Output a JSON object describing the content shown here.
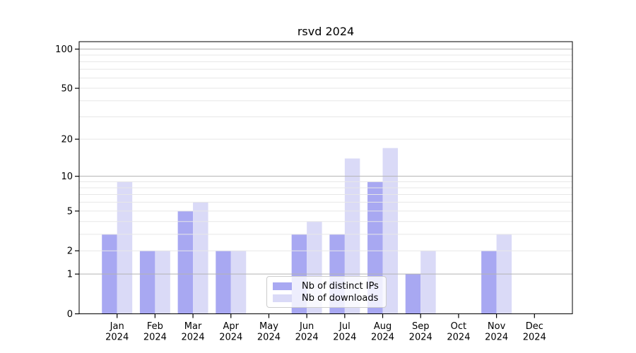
{
  "chart_data": {
    "type": "bar",
    "title": "rsvd 2024",
    "xlabel": "",
    "ylabel": "",
    "categories": [
      "Jan",
      "Feb",
      "Mar",
      "Apr",
      "May",
      "Jun",
      "Jul",
      "Aug",
      "Sep",
      "Oct",
      "Nov",
      "Dec"
    ],
    "category_year": "2024",
    "series": [
      {
        "name": "Nb of distinct IPs",
        "color": "#a8a8f2",
        "values": [
          3,
          2,
          5,
          2,
          0,
          3,
          3,
          9,
          1,
          0,
          2,
          0
        ]
      },
      {
        "name": "Nb of downloads",
        "color": "#dadaf7",
        "values": [
          9,
          2,
          6,
          2,
          0,
          4,
          14,
          17,
          2,
          0,
          3,
          0
        ]
      }
    ],
    "yscale": "log1p",
    "ylim": [
      0,
      114
    ],
    "yticks": [
      0,
      1,
      2,
      5,
      10,
      20,
      50,
      100
    ],
    "major_gridlines": [
      1,
      10,
      100
    ],
    "minor_gridlines": [
      2,
      3,
      4,
      5,
      6,
      7,
      8,
      9,
      20,
      30,
      40,
      50,
      60,
      70,
      80,
      90
    ],
    "grid": true,
    "legend_position": "lower center (inside axes)",
    "colors": {
      "major_grid": "#b3b3b3",
      "minor_grid": "#e7e7e7",
      "axis": "#000000",
      "background": "#ffffff",
      "legend_border": "#cccccc"
    }
  }
}
